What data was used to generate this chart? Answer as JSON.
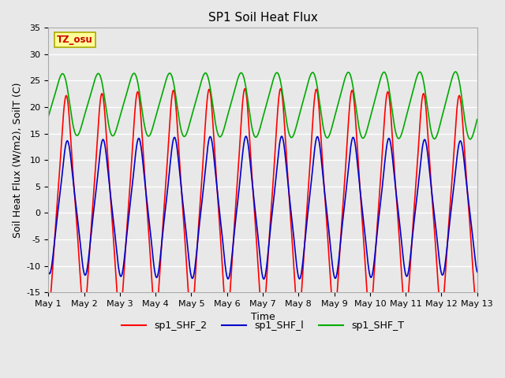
{
  "title": "SP1 Soil Heat Flux",
  "xlabel": "Time",
  "ylabel": "Soil Heat Flux (W/m2), SoilT (C)",
  "ylim": [
    -15,
    35
  ],
  "xlim": [
    0,
    12
  ],
  "xtick_labels": [
    "May 1",
    "May 2",
    "May 3",
    "May 4",
    "May 5",
    "May 6",
    "May 7",
    "May 8",
    "May 9",
    "May 10",
    "May 11",
    "May 12",
    "May 13"
  ],
  "ytick_vals": [
    -15,
    -10,
    -5,
    0,
    5,
    10,
    15,
    20,
    25,
    30,
    35
  ],
  "color_shf2": "#FF0000",
  "color_shf1": "#0000CC",
  "color_shft": "#00AA00",
  "bg_color": "#E8E8E8",
  "fig_bg": "#E8E8E8",
  "tz_label": "TZ_osu",
  "legend_labels": [
    "sp1_SHF_2",
    "sp1_SHF_l",
    "sp1_SHF_T"
  ],
  "linewidth": 1.2,
  "title_fontsize": 11,
  "label_fontsize": 9,
  "tick_fontsize": 8
}
